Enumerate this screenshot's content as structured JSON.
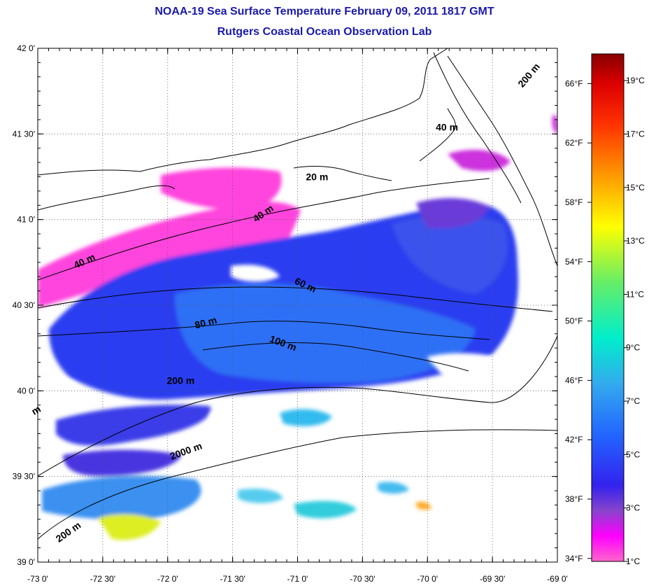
{
  "title": "NOAA-19 Sea Surface Temperature February 09, 2011 1817 GMT",
  "subtitle": "Rutgers Coastal Ocean Observation Lab",
  "lon_ticks": [
    {
      "lon": -73.0,
      "label": "-73 0'"
    },
    {
      "lon": -72.5,
      "label": "-72 30'"
    },
    {
      "lon": -72.0,
      "label": "-72 0'"
    },
    {
      "lon": -71.5,
      "label": "-71 30'"
    },
    {
      "lon": -71.0,
      "label": "-71 0'"
    },
    {
      "lon": -70.5,
      "label": "-70 30'"
    },
    {
      "lon": -70.0,
      "label": "-70 0'"
    },
    {
      "lon": -69.5,
      "label": "-69 30'"
    },
    {
      "lon": -69.0,
      "label": "-69 0'"
    }
  ],
  "lat_ticks": [
    {
      "lat": 42.0,
      "label": "42 0'"
    },
    {
      "lat": 41.5,
      "label": "41 30'"
    },
    {
      "lat": 41.0,
      "label": "41 0'"
    },
    {
      "lat": 40.5,
      "label": "40 30'"
    },
    {
      "lat": 40.0,
      "label": "40 0'"
    },
    {
      "lat": 39.5,
      "label": "39 30'"
    },
    {
      "lat": 39.0,
      "label": "39 0'"
    }
  ],
  "map_extent": {
    "lon": [
      -73.0,
      -69.0
    ],
    "lat": [
      39.0,
      42.0
    ]
  },
  "contour_labels": [
    {
      "text": "200 m",
      "lon": -69.2,
      "lat": 41.83,
      "angle": -50
    },
    {
      "text": "40 m",
      "lon": -69.85,
      "lat": 41.52,
      "angle": 0
    },
    {
      "text": "20 m",
      "lon": -70.85,
      "lat": 41.23,
      "angle": 0
    },
    {
      "text": "40 m",
      "lon": -71.25,
      "lat": 41.02,
      "angle": -35
    },
    {
      "text": "40 m",
      "lon": -72.63,
      "lat": 40.74,
      "angle": -25
    },
    {
      "text": "60 m",
      "lon": -70.95,
      "lat": 40.6,
      "angle": 25
    },
    {
      "text": "80 m",
      "lon": -71.7,
      "lat": 40.38,
      "angle": -15
    },
    {
      "text": "100 m",
      "lon": -71.12,
      "lat": 40.26,
      "angle": 20
    },
    {
      "text": "200 m",
      "lon": -71.9,
      "lat": 40.04,
      "angle": 0
    },
    {
      "text": "2000 m",
      "lon": -71.85,
      "lat": 39.63,
      "angle": -20
    },
    {
      "text": "200 m",
      "lon": -72.75,
      "lat": 39.16,
      "angle": -35
    },
    {
      "text": "m",
      "lon": -73.0,
      "lat": 39.87,
      "angle": -30
    }
  ],
  "colorbar": {
    "fahrenheit": [
      "66°F",
      "62°F",
      "58°F",
      "54°F",
      "50°F",
      "46°F",
      "42°F",
      "38°F",
      "34°F"
    ],
    "fahrenheit_values": [
      66,
      62,
      58,
      54,
      50,
      46,
      42,
      38,
      34
    ],
    "celsius": [
      "19°C",
      "17°C",
      "15°C",
      "13°C",
      "11°C",
      "9°C",
      "7°C",
      "5°C",
      "3°C",
      "1°C"
    ],
    "celsius_values": [
      19,
      17,
      15,
      13,
      11,
      9,
      7,
      5,
      3,
      1
    ],
    "range_c": [
      1,
      20
    ],
    "colors": [
      "#ff66cc",
      "#ff00ff",
      "#8844cc",
      "#3322ee",
      "#2266ff",
      "#33aaee",
      "#00eecc",
      "#66ee66",
      "#ffff00",
      "#ff9900",
      "#ff3300",
      "#dd0000",
      "#880000"
    ]
  }
}
